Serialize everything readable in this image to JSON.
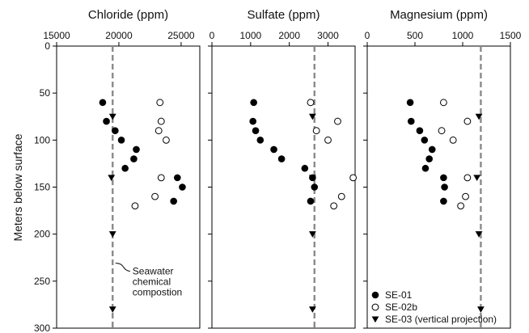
{
  "y_axis": {
    "label": "Meters below surface",
    "ticks": [
      0,
      50,
      100,
      150,
      200,
      250,
      300
    ],
    "lim": [
      0,
      300
    ],
    "inverted": true
  },
  "colors": {
    "marker": "#000000",
    "seawater_line": "#8a8a8a",
    "frame": "#000000"
  },
  "chart_data": [
    {
      "type": "scatter",
      "title": "Chloride (ppm)",
      "xlim": [
        15000,
        26500
      ],
      "xticks": [
        15000,
        20000,
        25000
      ],
      "seawater_value": 19500,
      "annotation": {
        "lines": [
          "Seawater",
          "chemical",
          "compostion"
        ],
        "points_to": [
          19600,
          230
        ]
      },
      "series": [
        {
          "name": "SE-01",
          "marker": "filled-circle",
          "points": [
            [
              18700,
              60
            ],
            [
              19000,
              80
            ],
            [
              19700,
              90
            ],
            [
              20200,
              100
            ],
            [
              21400,
              110
            ],
            [
              21200,
              120
            ],
            [
              20500,
              130
            ],
            [
              24700,
              140
            ],
            [
              25100,
              150
            ],
            [
              24400,
              165
            ]
          ]
        },
        {
          "name": "SE-02b",
          "marker": "open-circle",
          "points": [
            [
              23300,
              60
            ],
            [
              23400,
              80
            ],
            [
              23200,
              90
            ],
            [
              23800,
              100
            ],
            [
              23400,
              140
            ],
            [
              22900,
              160
            ],
            [
              21300,
              170
            ]
          ]
        },
        {
          "name": "SE-03 (vertical projection)",
          "marker": "filled-triangle-down",
          "points": [
            [
              19500,
              75
            ],
            [
              19400,
              140
            ],
            [
              19500,
              200
            ],
            [
              19500,
              280
            ]
          ]
        }
      ]
    },
    {
      "type": "scatter",
      "title": "Sulfate (ppm)",
      "xlim": [
        0,
        3700
      ],
      "xticks": [
        0,
        1000,
        2000,
        3000
      ],
      "seawater_value": 2650,
      "series": [
        {
          "name": "SE-01",
          "marker": "filled-circle",
          "points": [
            [
              1080,
              60
            ],
            [
              1060,
              80
            ],
            [
              1130,
              90
            ],
            [
              1250,
              100
            ],
            [
              1600,
              110
            ],
            [
              1800,
              120
            ],
            [
              2400,
              130
            ],
            [
              2600,
              140
            ],
            [
              2650,
              150
            ],
            [
              2550,
              165
            ]
          ]
        },
        {
          "name": "SE-02b",
          "marker": "open-circle",
          "points": [
            [
              2550,
              60
            ],
            [
              3250,
              80
            ],
            [
              2700,
              90
            ],
            [
              3000,
              100
            ],
            [
              3650,
              140
            ],
            [
              3350,
              160
            ],
            [
              3150,
              170
            ]
          ]
        },
        {
          "name": "SE-03 (vertical projection)",
          "marker": "filled-triangle-down",
          "points": [
            [
              2600,
              75
            ],
            [
              2600,
              140
            ],
            [
              2600,
              200
            ],
            [
              2600,
              280
            ]
          ]
        }
      ]
    },
    {
      "type": "scatter",
      "title": "Magnesium (ppm)",
      "xlim": [
        0,
        1500
      ],
      "xticks": [
        0,
        500,
        1000,
        1500
      ],
      "seawater_value": 1190,
      "series": [
        {
          "name": "SE-01",
          "marker": "filled-circle",
          "points": [
            [
              450,
              60
            ],
            [
              460,
              80
            ],
            [
              550,
              90
            ],
            [
              600,
              100
            ],
            [
              680,
              110
            ],
            [
              650,
              120
            ],
            [
              610,
              130
            ],
            [
              800,
              140
            ],
            [
              810,
              150
            ],
            [
              800,
              165
            ]
          ]
        },
        {
          "name": "SE-02b",
          "marker": "open-circle",
          "points": [
            [
              800,
              60
            ],
            [
              1050,
              80
            ],
            [
              780,
              90
            ],
            [
              900,
              100
            ],
            [
              1050,
              140
            ],
            [
              1030,
              160
            ],
            [
              980,
              170
            ]
          ]
        },
        {
          "name": "SE-03 (vertical projection)",
          "marker": "filled-triangle-down",
          "points": [
            [
              1170,
              75
            ],
            [
              1150,
              140
            ],
            [
              1170,
              200
            ],
            [
              1190,
              280
            ]
          ]
        }
      ]
    }
  ],
  "legend": {
    "placement": "bottom-right",
    "items": [
      {
        "label": "SE-01",
        "marker": "filled-circle"
      },
      {
        "label": "SE-02b",
        "marker": "open-circle"
      },
      {
        "label": "SE-03 (vertical projection)",
        "marker": "filled-triangle-down"
      }
    ]
  }
}
